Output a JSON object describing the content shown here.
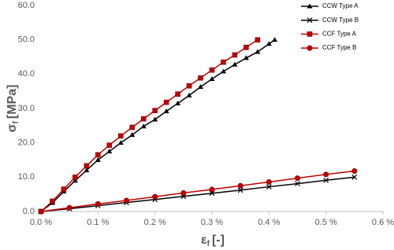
{
  "chart_data": {
    "type": "line",
    "y_label": {
      "symbol": "σ",
      "subscript": "f",
      "unit": "[MPa]"
    },
    "x_label": {
      "symbol": "ε",
      "subscript": "f",
      "unit": "[-]"
    },
    "xlim": [
      0,
      0.6
    ],
    "xticks": [
      {
        "value": 0,
        "label": "0.0 %"
      },
      {
        "value": 0.1,
        "label": "0.1 %"
      },
      {
        "value": 0.2,
        "label": "0.2 %"
      },
      {
        "value": 0.3,
        "label": "0.3 %"
      },
      {
        "value": 0.4,
        "label": "0.4 %"
      },
      {
        "value": 0.5,
        "label": "0.5 %"
      },
      {
        "value": 0.6,
        "label": "0.6 %"
      }
    ],
    "ylim": [
      0,
      60
    ],
    "yticks": [
      {
        "value": 0,
        "label": "0.0"
      },
      {
        "value": 10,
        "label": "10.0"
      },
      {
        "value": 20,
        "label": "20.0"
      },
      {
        "value": 30,
        "label": "30.0"
      },
      {
        "value": 40,
        "label": "40.0"
      },
      {
        "value": 50,
        "label": "50.0"
      },
      {
        "value": 60,
        "label": "60.0"
      }
    ],
    "grid": false,
    "legend": "top-right",
    "series": [
      {
        "name": "CCW Type A",
        "color": "#000000",
        "marker": "triangle",
        "x": [
          0,
          0.02,
          0.04,
          0.06,
          0.08,
          0.1,
          0.12,
          0.14,
          0.16,
          0.18,
          0.2,
          0.22,
          0.24,
          0.26,
          0.28,
          0.3,
          0.32,
          0.34,
          0.36,
          0.38,
          0.4,
          0.41
        ],
        "values": [
          0,
          2.5,
          5.8,
          9,
          12,
          15,
          17.5,
          20,
          22.3,
          24.8,
          26.8,
          29.2,
          31.5,
          33.8,
          36.3,
          38.6,
          40.8,
          42.8,
          44.7,
          46.5,
          48.8,
          50
        ]
      },
      {
        "name": "CCW Type B",
        "color": "#000000",
        "marker": "x",
        "x": [
          0,
          0.05,
          0.1,
          0.15,
          0.2,
          0.25,
          0.3,
          0.35,
          0.4,
          0.45,
          0.5,
          0.55
        ],
        "values": [
          0,
          0.8,
          1.7,
          2.6,
          3.5,
          4.4,
          5.3,
          6.2,
          7.2,
          8.1,
          9.1,
          10
        ]
      },
      {
        "name": "CCF Type A",
        "color": "#c00000",
        "marker": "square",
        "x": [
          0,
          0.02,
          0.04,
          0.06,
          0.08,
          0.1,
          0.12,
          0.14,
          0.16,
          0.18,
          0.2,
          0.22,
          0.24,
          0.26,
          0.28,
          0.3,
          0.32,
          0.34,
          0.36,
          0.38
        ],
        "values": [
          0,
          3,
          6.5,
          10,
          13.3,
          16.5,
          19.3,
          22,
          24.5,
          27,
          29.4,
          31.8,
          34.2,
          36.6,
          38.9,
          41.2,
          43.5,
          45.6,
          47.8,
          50
        ]
      },
      {
        "name": "CCF Type B",
        "color": "#c00000",
        "marker": "circle",
        "x": [
          0,
          0.05,
          0.1,
          0.15,
          0.2,
          0.25,
          0.3,
          0.35,
          0.4,
          0.45,
          0.5,
          0.55
        ],
        "values": [
          0,
          1.1,
          2.2,
          3.2,
          4.3,
          5.4,
          6.4,
          7.5,
          8.6,
          9.7,
          10.8,
          11.8
        ]
      }
    ]
  }
}
